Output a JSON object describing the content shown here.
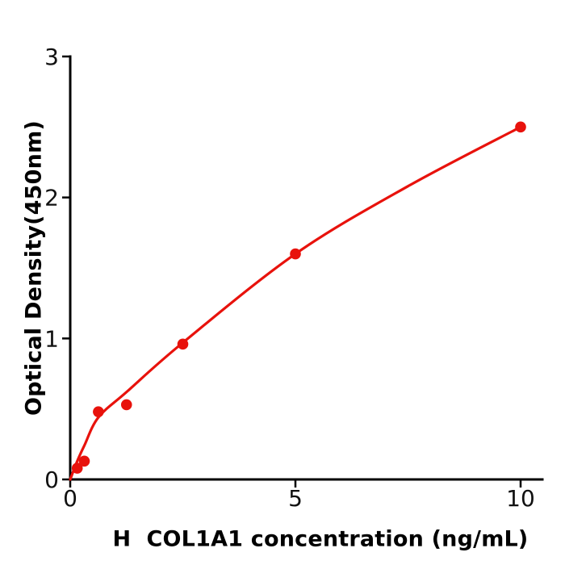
{
  "chart_data": {
    "type": "scatter",
    "title": "",
    "xlabel": "H  COL1A1 concentration (ng/mL)",
    "ylabel": "Optical Density(450nm)",
    "x": [
      0.156,
      0.313,
      0.625,
      1.25,
      2.5,
      5,
      10
    ],
    "y": [
      0.08,
      0.13,
      0.48,
      0.53,
      0.96,
      1.6,
      2.5
    ],
    "curve_fit_points": [
      [
        0,
        0
      ],
      [
        0.156,
        0.13
      ],
      [
        0.313,
        0.24
      ],
      [
        0.625,
        0.44
      ],
      [
        1.25,
        0.62
      ],
      [
        2.5,
        0.97
      ],
      [
        5,
        1.6
      ],
      [
        7.5,
        2.08
      ],
      [
        10,
        2.5
      ]
    ],
    "xtick_values": [
      0,
      5,
      10
    ],
    "xtick_labels": [
      "0",
      "5",
      "10"
    ],
    "ytick_values": [
      0,
      1,
      2,
      3
    ],
    "ytick_labels": [
      "0",
      "1",
      "2",
      "3"
    ],
    "xlim": [
      0,
      10.5
    ],
    "ylim": [
      0,
      3
    ],
    "grid": false,
    "legend": "none",
    "colors": {
      "point": "#e8120c",
      "line": "#e8120c",
      "axis": "#000000",
      "tick_text": "#111111"
    }
  }
}
